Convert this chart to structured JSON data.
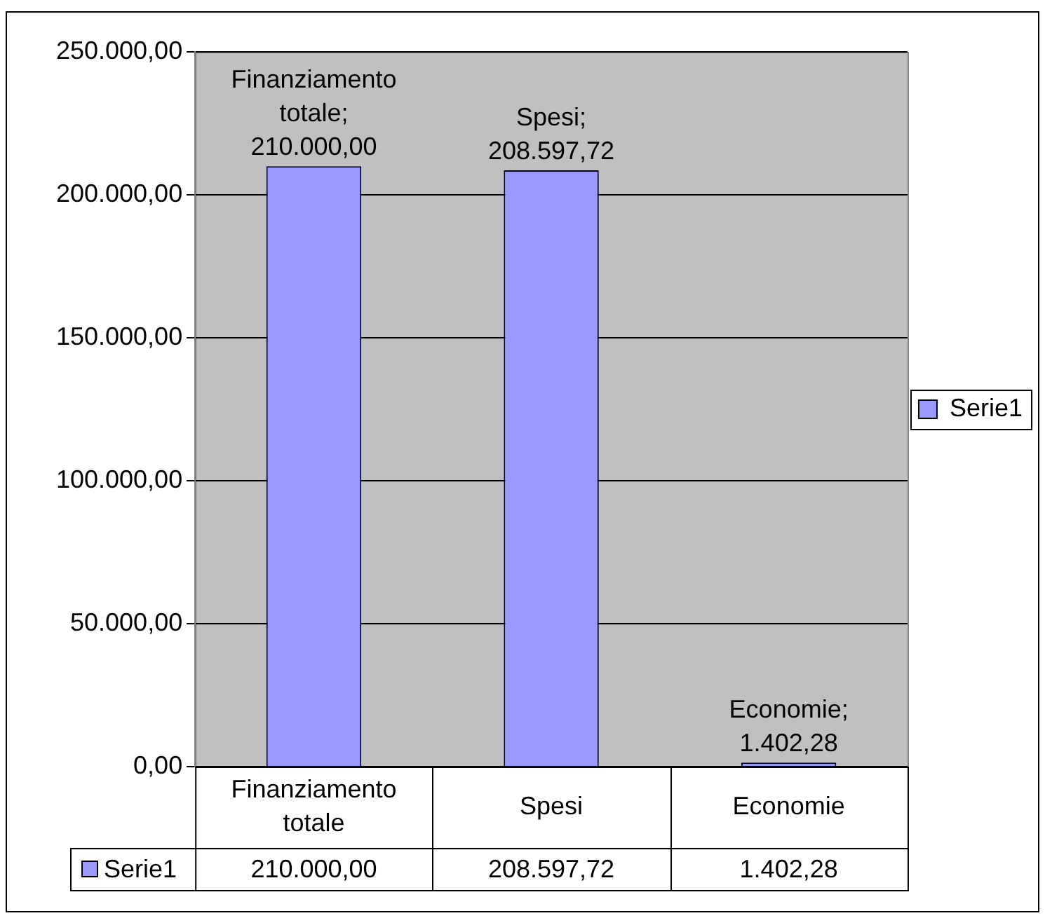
{
  "chart_data": {
    "type": "bar",
    "categories": [
      "Finanziamento totale",
      "Spesi",
      "Economie"
    ],
    "series": [
      {
        "name": "Serie1",
        "color": "#9999ff",
        "values": [
          210000,
          208597.72,
          1402.28
        ]
      }
    ],
    "ylim": [
      0,
      250000
    ],
    "yticks": [
      {
        "value": 0,
        "label": "0,00"
      },
      {
        "value": 50000,
        "label": "50.000,00"
      },
      {
        "value": 100000,
        "label": "100.000,00"
      },
      {
        "value": 150000,
        "label": "150.000,00"
      },
      {
        "value": 200000,
        "label": "200.000,00"
      },
      {
        "value": 250000,
        "label": "250.000,00"
      }
    ],
    "value_labels": [
      "210.000,00",
      "208.597,72",
      "1.402,28"
    ],
    "annotations": [
      {
        "text": "Finanziamento totale;",
        "x": "Finanziamento totale",
        "y": 210000
      },
      {
        "text": "Spesi;",
        "x": "Spesi",
        "y": 208597.72
      },
      {
        "text": "Economie;",
        "x": "Economie",
        "y": 1402.28
      }
    ],
    "grid": "y",
    "legend": "right"
  }
}
